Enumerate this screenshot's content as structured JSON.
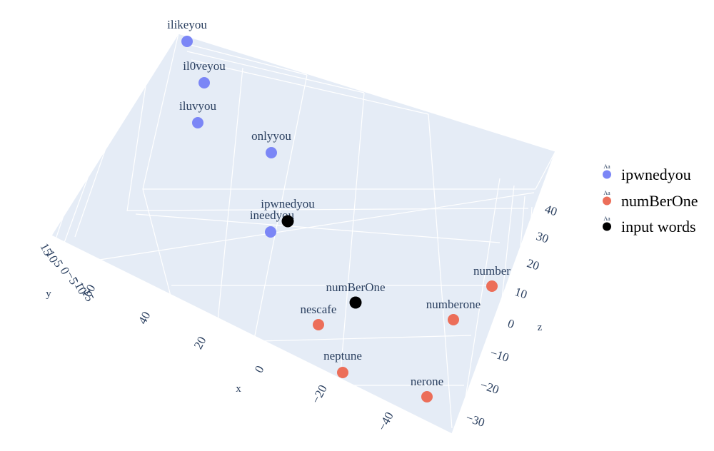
{
  "chart_data": {
    "type": "scatter",
    "title": "",
    "axes": {
      "x": {
        "label": "x",
        "ticks": [
          "60",
          "40",
          "20",
          "0",
          "−20",
          "−40"
        ]
      },
      "y": {
        "label": "y",
        "ticks": [
          "15",
          "10",
          "5",
          "0",
          "−5",
          "−10",
          "−15"
        ]
      },
      "z": {
        "label": "z",
        "ticks": [
          "40",
          "30",
          "20",
          "10",
          "0",
          "−10",
          "−20",
          "−30"
        ]
      }
    },
    "grid": true,
    "legend_position": "right",
    "series": [
      {
        "name": "ipwnedyou",
        "color": "#7b86f6",
        "points": [
          {
            "label": "ilikeyou"
          },
          {
            "label": "il0veyou"
          },
          {
            "label": "iluvyou"
          },
          {
            "label": "onlyyou"
          },
          {
            "label": "ineedyou"
          }
        ]
      },
      {
        "name": "numBerOne",
        "color": "#ec6e59",
        "points": [
          {
            "label": "number"
          },
          {
            "label": "numberone"
          },
          {
            "label": "nescafe"
          },
          {
            "label": "neptune"
          },
          {
            "label": "nerone"
          }
        ]
      },
      {
        "name": "input words",
        "color": "#000000",
        "points": [
          {
            "label": "ipwnedyou"
          },
          {
            "label": "numBerOne"
          }
        ]
      }
    ]
  }
}
